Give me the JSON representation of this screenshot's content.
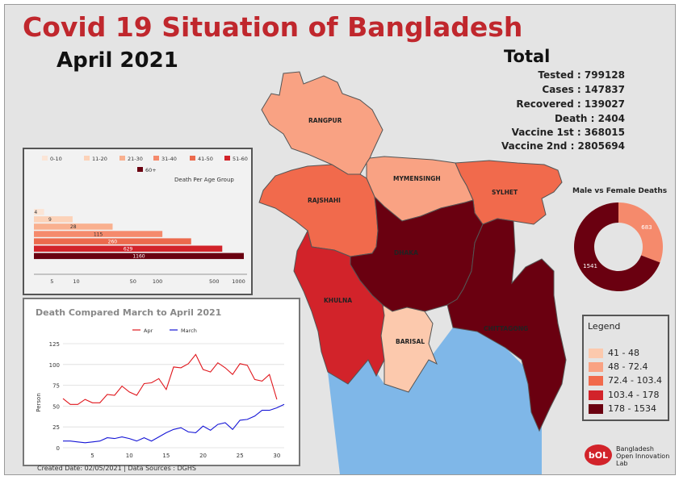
{
  "title": "Covid 19 Situation of Bangladesh",
  "subtitle": "April 2021",
  "total": {
    "heading": "Total",
    "stats": [
      "Tested : 799128",
      "Cases : 147837",
      "Recovered : 139027",
      "Death : 2404",
      "Vaccine 1st : 368015",
      "Vaccine 2nd : 2805694"
    ]
  },
  "map": {
    "divisions": [
      {
        "name": "RANGPUR",
        "legend_class": 1
      },
      {
        "name": "MYMENSINGH",
        "legend_class": 1
      },
      {
        "name": "SYLHET",
        "legend_class": 2
      },
      {
        "name": "RAJSHAHI",
        "legend_class": 2
      },
      {
        "name": "DHAKA",
        "legend_class": 4
      },
      {
        "name": "KHULNA",
        "legend_class": 3
      },
      {
        "name": "BARISAL",
        "legend_class": 0
      },
      {
        "name": "CHITTAGONG",
        "legend_class": 4
      }
    ],
    "colors": {
      "land_bg": "#e4e4e4",
      "water": "#7fb7e8",
      "border": "#555555"
    }
  },
  "legend": {
    "title": "Legend",
    "items": [
      {
        "label": "41 - 48",
        "color": "#fcc9ad"
      },
      {
        "label": "48 - 72.4",
        "color": "#f9a283"
      },
      {
        "label": "72.4 - 103.4",
        "color": "#f16a4c"
      },
      {
        "label": "103.4 - 178",
        "color": "#d2232a"
      },
      {
        "label": "178 - 1534",
        "color": "#6a0010"
      }
    ]
  },
  "chart_data": [
    {
      "type": "bar",
      "title": "Death Per Age Group",
      "orientation": "horizontal",
      "scale": "log",
      "categories": [
        "0-10",
        "11-20",
        "21-30",
        "31-40",
        "41-50",
        "51-60",
        "60+"
      ],
      "values": [
        4,
        9,
        28,
        115,
        260,
        629,
        1160
      ],
      "colors": [
        "#fbe5d6",
        "#fcd2b8",
        "#f9b08f",
        "#f58a6c",
        "#ec6a4d",
        "#d2232a",
        "#6a0010"
      ],
      "xticks": [
        "5",
        "10",
        "50",
        "100",
        "500",
        "1000"
      ],
      "xtick_values": [
        5,
        10,
        50,
        100,
        500,
        1000
      ]
    },
    {
      "type": "line",
      "title": "Death Compared March to April 2021",
      "ylabel": "Person",
      "yticks": [
        "0",
        "25",
        "50",
        "75",
        "100",
        "125"
      ],
      "ylim": [
        0,
        125
      ],
      "xticks": [
        "5",
        "10",
        "15",
        "20",
        "25",
        "30"
      ],
      "xlim": [
        1,
        31
      ],
      "series": [
        {
          "name": "Apr",
          "color": "#e0161c",
          "x": [
            1,
            2,
            3,
            4,
            5,
            6,
            7,
            8,
            9,
            10,
            11,
            12,
            13,
            14,
            15,
            16,
            17,
            18,
            19,
            20,
            21,
            22,
            23,
            24,
            25,
            26,
            27,
            28,
            29,
            30
          ],
          "values": [
            59,
            52,
            52,
            58,
            54,
            54,
            64,
            63,
            74,
            67,
            63,
            77,
            78,
            83,
            70,
            97,
            96,
            101,
            112,
            94,
            91,
            102,
            96,
            88,
            101,
            99,
            82,
            80,
            88,
            58
          ]
        },
        {
          "name": "March",
          "color": "#1515d6",
          "x": [
            1,
            2,
            3,
            4,
            5,
            6,
            7,
            8,
            9,
            10,
            11,
            12,
            13,
            14,
            15,
            16,
            17,
            18,
            19,
            20,
            21,
            22,
            23,
            24,
            25,
            26,
            27,
            28,
            29,
            30,
            31
          ],
          "values": [
            8,
            8,
            7,
            6,
            7,
            8,
            12,
            11,
            13,
            11,
            8,
            12,
            8,
            13,
            18,
            22,
            24,
            19,
            18,
            26,
            21,
            28,
            30,
            22,
            33,
            34,
            38,
            45,
            45,
            48,
            52
          ]
        }
      ]
    },
    {
      "type": "pie",
      "title": "Male vs Female Deaths",
      "donut": true,
      "categories": [
        "Female",
        "Male"
      ],
      "values": [
        683,
        1541
      ],
      "labels": [
        "683",
        "1541"
      ],
      "colors": [
        "#f58a6c",
        "#6a0010"
      ]
    }
  ],
  "footer": "Created Date: 02/05/2021 | Data Sources : DGHS",
  "logo": {
    "mark": "bOL",
    "text": [
      "Bangladesh",
      "Open Innovation",
      "Lab"
    ],
    "color": "#d2232a"
  }
}
